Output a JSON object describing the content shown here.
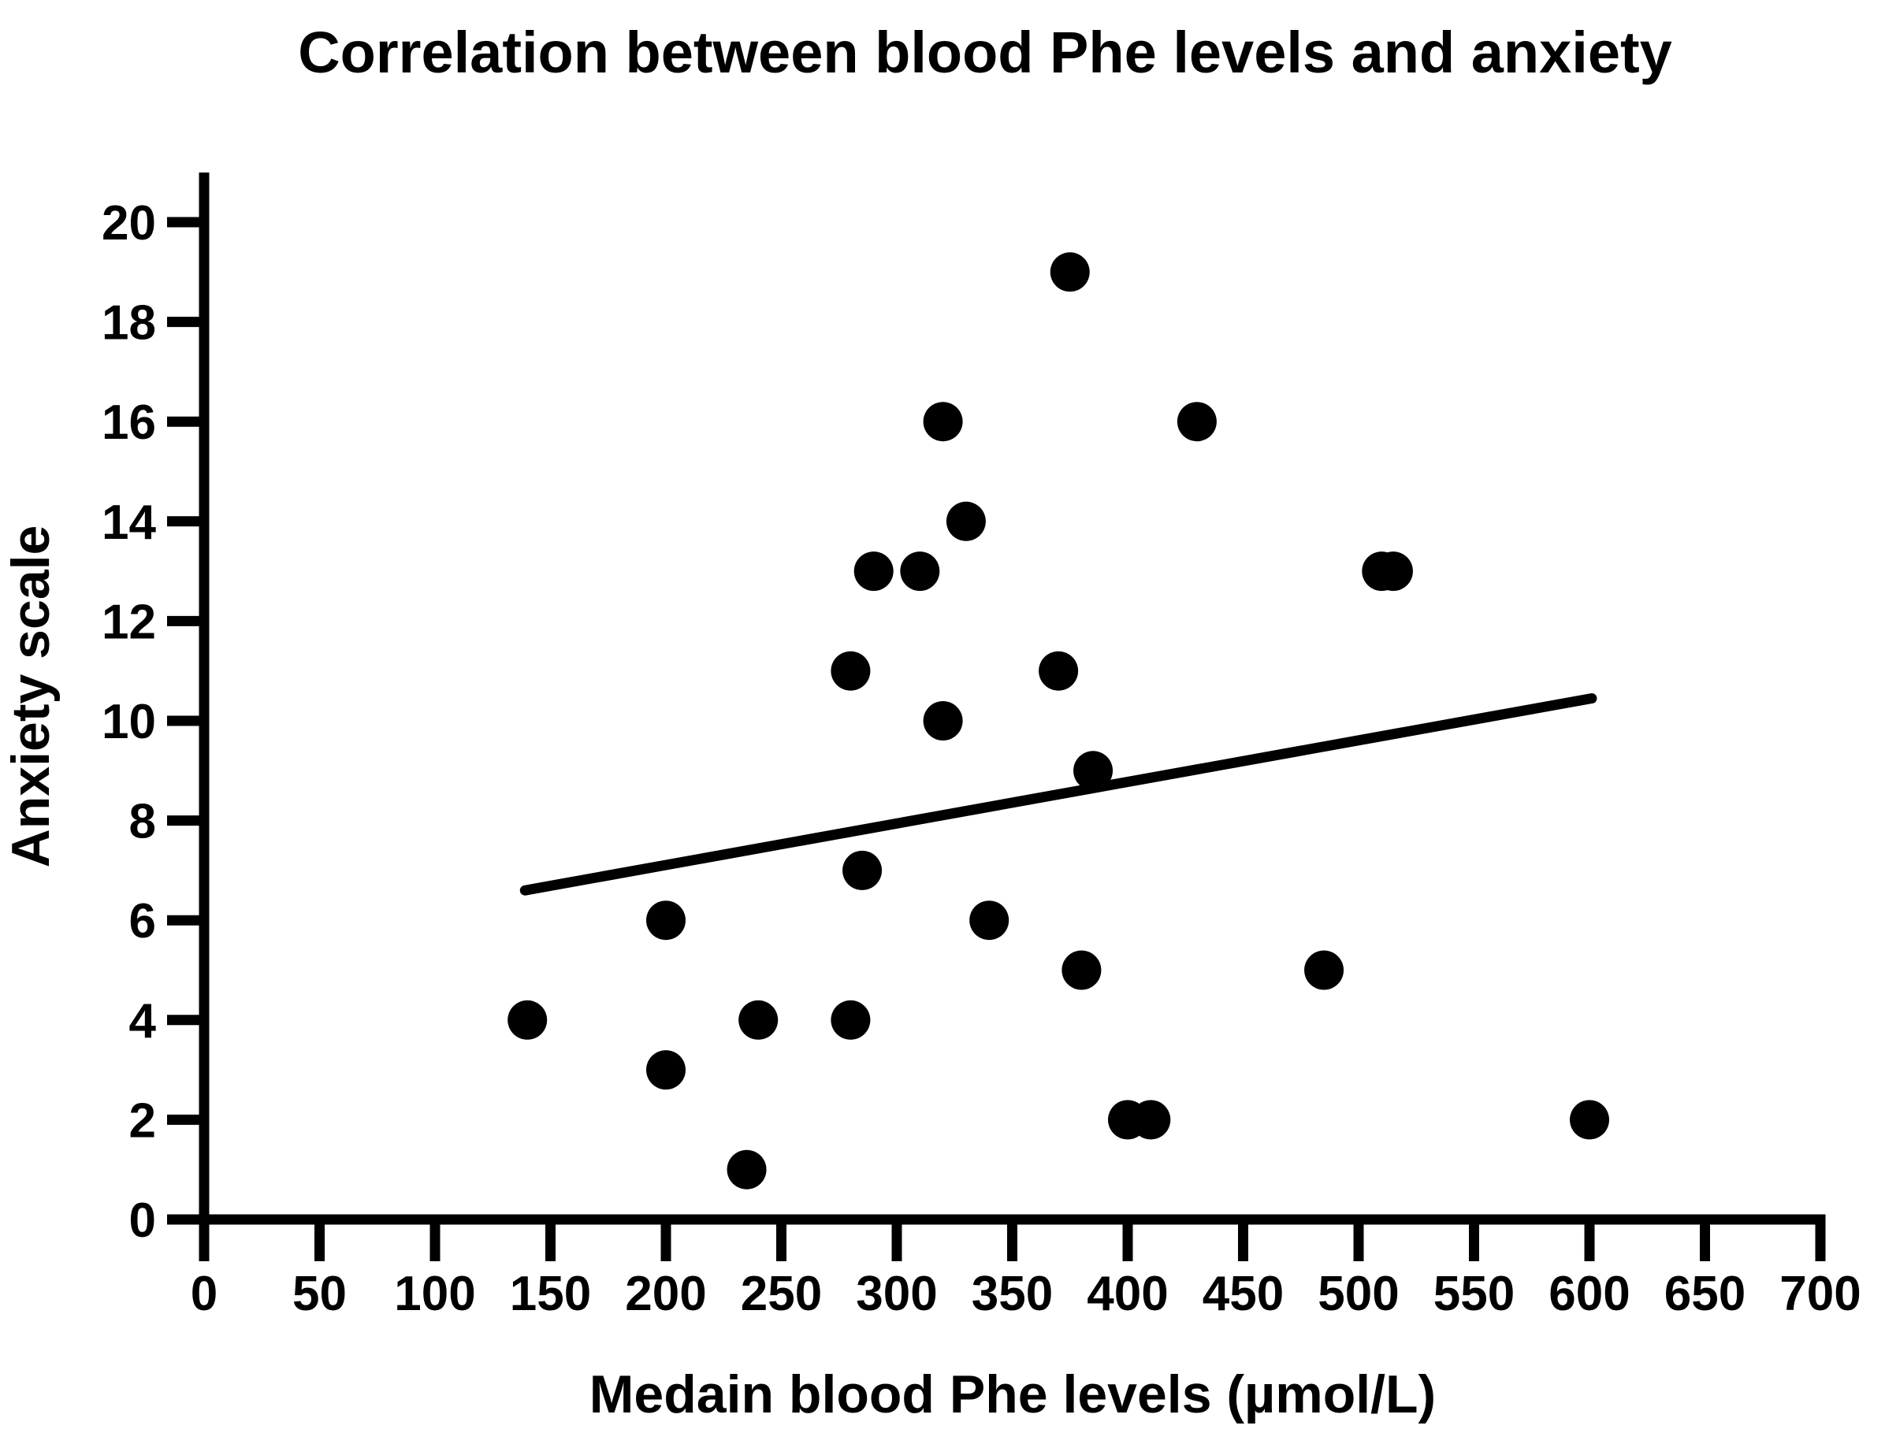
{
  "chart_data": {
    "type": "scatter",
    "title": "Correlation between blood Phe levels and anxiety",
    "xlabel": "Medain blood Phe levels (µmol/L)",
    "ylabel": "Anxiety scale",
    "xlim": [
      0,
      700
    ],
    "ylim": [
      0,
      20
    ],
    "x_ticks": [
      0,
      50,
      100,
      150,
      200,
      250,
      300,
      350,
      400,
      450,
      500,
      550,
      600,
      650,
      700
    ],
    "y_ticks": [
      0,
      2,
      4,
      6,
      8,
      10,
      12,
      14,
      16,
      18,
      20
    ],
    "grid": false,
    "legend": "none",
    "points": [
      {
        "x": 140,
        "y": 4
      },
      {
        "x": 200,
        "y": 3
      },
      {
        "x": 200,
        "y": 6
      },
      {
        "x": 235,
        "y": 1
      },
      {
        "x": 240,
        "y": 4
      },
      {
        "x": 280,
        "y": 4
      },
      {
        "x": 280,
        "y": 11
      },
      {
        "x": 285,
        "y": 7
      },
      {
        "x": 290,
        "y": 13
      },
      {
        "x": 310,
        "y": 13
      },
      {
        "x": 320,
        "y": 10
      },
      {
        "x": 320,
        "y": 16
      },
      {
        "x": 330,
        "y": 14
      },
      {
        "x": 340,
        "y": 6
      },
      {
        "x": 370,
        "y": 11
      },
      {
        "x": 375,
        "y": 19
      },
      {
        "x": 380,
        "y": 5
      },
      {
        "x": 385,
        "y": 9
      },
      {
        "x": 400,
        "y": 2
      },
      {
        "x": 410,
        "y": 2
      },
      {
        "x": 430,
        "y": 16
      },
      {
        "x": 485,
        "y": 5
      },
      {
        "x": 510,
        "y": 13
      },
      {
        "x": 515,
        "y": 13
      },
      {
        "x": 600,
        "y": 2
      }
    ],
    "trend_line": {
      "x1": 139,
      "y1": 6.6,
      "x2": 601,
      "y2": 10.45
    },
    "marker_color": "#000000",
    "axis_color": "#000000",
    "background_color": "#ffffff"
  }
}
